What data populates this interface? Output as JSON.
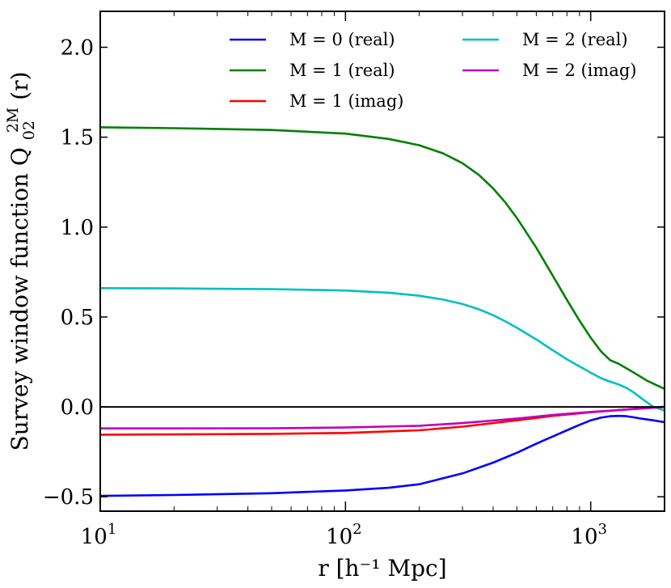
{
  "chart_data": {
    "type": "line",
    "title": "",
    "xlabel": "r [h⁻¹ Mpc]",
    "ylabel": "Survey window function Q",
    "ylabel_sup": "2M",
    "ylabel_sub": "02",
    "ylabel_tail": "(r)",
    "xscale": "log",
    "xlim": [
      10,
      2000
    ],
    "ylim": [
      -0.58,
      2.2
    ],
    "x_ticks": [
      {
        "value": 10,
        "base": "10",
        "exp": "1"
      },
      {
        "value": 100,
        "base": "10",
        "exp": "2"
      },
      {
        "value": 1000,
        "base": "10",
        "exp": "3"
      }
    ],
    "y_ticks": [
      {
        "value": -0.5,
        "label": "−0.5"
      },
      {
        "value": 0.0,
        "label": "0.0"
      },
      {
        "value": 0.5,
        "label": "0.5"
      },
      {
        "value": 1.0,
        "label": "1.0"
      },
      {
        "value": 1.5,
        "label": "1.5"
      },
      {
        "value": 2.0,
        "label": "2.0"
      }
    ],
    "zero_line": 0,
    "legend_position": "top-right",
    "series": [
      {
        "name": "M = 0 (real)",
        "color": "#0000ff",
        "x": [
          10,
          20,
          50,
          100,
          150,
          200,
          300,
          400,
          500,
          600,
          700,
          800,
          900,
          1000,
          1100,
          1200,
          1300,
          1400,
          1500,
          1600,
          1800,
          2000
        ],
        "y": [
          -0.495,
          -0.49,
          -0.48,
          -0.465,
          -0.45,
          -0.43,
          -0.37,
          -0.31,
          -0.255,
          -0.205,
          -0.165,
          -0.13,
          -0.1,
          -0.075,
          -0.06,
          -0.052,
          -0.05,
          -0.052,
          -0.058,
          -0.065,
          -0.075,
          -0.085
        ]
      },
      {
        "name": "M = 1 (real)",
        "color": "#008000",
        "x": [
          10,
          20,
          50,
          100,
          150,
          200,
          250,
          300,
          350,
          400,
          450,
          500,
          600,
          700,
          800,
          900,
          1000,
          1100,
          1200,
          1300,
          1500,
          1700,
          2000
        ],
        "y": [
          1.555,
          1.55,
          1.54,
          1.52,
          1.49,
          1.455,
          1.41,
          1.355,
          1.29,
          1.215,
          1.135,
          1.05,
          0.885,
          0.73,
          0.595,
          0.48,
          0.385,
          0.31,
          0.26,
          0.24,
          0.19,
          0.145,
          0.1
        ]
      },
      {
        "name": "M = 1 (imag)",
        "color": "#ff0000",
        "x": [
          10,
          20,
          50,
          100,
          200,
          300,
          500,
          700,
          1000,
          1500,
          2000
        ],
        "y": [
          -0.155,
          -0.153,
          -0.15,
          -0.145,
          -0.13,
          -0.11,
          -0.075,
          -0.05,
          -0.03,
          -0.012,
          0.0
        ]
      },
      {
        "name": "M = 2 (real)",
        "color": "#00bfbf",
        "x": [
          10,
          20,
          50,
          100,
          150,
          200,
          250,
          300,
          350,
          400,
          450,
          500,
          600,
          700,
          800,
          900,
          1000,
          1100,
          1200,
          1300,
          1400,
          1500,
          1600,
          1800,
          2000
        ],
        "y": [
          0.66,
          0.659,
          0.655,
          0.647,
          0.635,
          0.618,
          0.597,
          0.572,
          0.543,
          0.51,
          0.475,
          0.44,
          0.375,
          0.315,
          0.265,
          0.225,
          0.19,
          0.16,
          0.14,
          0.125,
          0.105,
          0.08,
          0.05,
          0.0,
          -0.02
        ]
      },
      {
        "name": "M = 2 (imag)",
        "color": "#bf00bf",
        "x": [
          10,
          20,
          50,
          100,
          200,
          300,
          500,
          700,
          1000,
          1500,
          2000
        ],
        "y": [
          -0.12,
          -0.12,
          -0.119,
          -0.115,
          -0.105,
          -0.09,
          -0.065,
          -0.045,
          -0.028,
          -0.012,
          0.0
        ]
      }
    ]
  }
}
